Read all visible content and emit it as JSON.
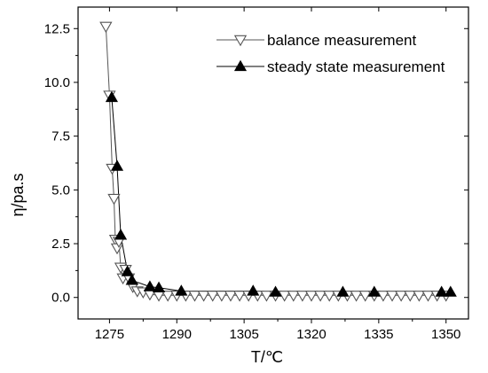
{
  "chart_data": {
    "type": "line",
    "xlabel": "T/℃",
    "ylabel": "η/pa.s",
    "xlim": [
      1268,
      1355
    ],
    "ylim": [
      -1.0,
      13.5
    ],
    "xticks": [
      "1275",
      "1290",
      "1305",
      "1320",
      "1335",
      "1350"
    ],
    "yticks": [
      "0.0",
      "2.5",
      "5.0",
      "7.5",
      "10.0",
      "12.5"
    ],
    "legend_position": "top-right",
    "series": [
      {
        "name": "balance measurement",
        "marker": "open-triangle-down",
        "color": "#555555",
        "x": [
          1274.2,
          1275.0,
          1275.6,
          1276.0,
          1276.3,
          1276.7,
          1277.1,
          1277.5,
          1278.0,
          1278.6,
          1279.3,
          1280.2,
          1281.2,
          1282.5,
          1284.0,
          1286.0,
          1288.0,
          1290.0,
          1292.0,
          1294.0,
          1296.0,
          1298.0,
          1300.0,
          1302.0,
          1304.0,
          1306.0,
          1308.0,
          1310.0,
          1312.0,
          1314.0,
          1316.0,
          1318.0,
          1320.0,
          1322.0,
          1324.0,
          1326.0,
          1328.0,
          1330.0,
          1332.0,
          1334.0,
          1336.0,
          1338.0,
          1340.0,
          1342.0,
          1344.0,
          1346.0,
          1348.0,
          1350.0
        ],
        "y": [
          12.6,
          9.4,
          6.0,
          4.6,
          2.7,
          2.3,
          2.6,
          1.4,
          0.9,
          1.3,
          0.9,
          0.5,
          0.3,
          0.25,
          0.15,
          0.1,
          0.1,
          0.1,
          0.1,
          0.1,
          0.1,
          0.1,
          0.1,
          0.1,
          0.1,
          0.1,
          0.1,
          0.1,
          0.1,
          0.1,
          0.1,
          0.1,
          0.1,
          0.1,
          0.1,
          0.1,
          0.1,
          0.1,
          0.1,
          0.1,
          0.1,
          0.1,
          0.1,
          0.1,
          0.1,
          0.1,
          0.1,
          0.1
        ]
      },
      {
        "name": "steady state measurement",
        "marker": "filled-triangle-up",
        "color": "#000000",
        "x": [
          1275.5,
          1276.7,
          1277.5,
          1279.0,
          1280.0,
          1284.0,
          1286.0,
          1291.0,
          1307.0,
          1312.0,
          1327.0,
          1334.0,
          1349.0,
          1351.0
        ],
        "y": [
          9.3,
          6.1,
          2.9,
          1.2,
          0.8,
          0.5,
          0.45,
          0.3,
          0.3,
          0.25,
          0.25,
          0.25,
          0.25,
          0.25
        ]
      }
    ]
  }
}
